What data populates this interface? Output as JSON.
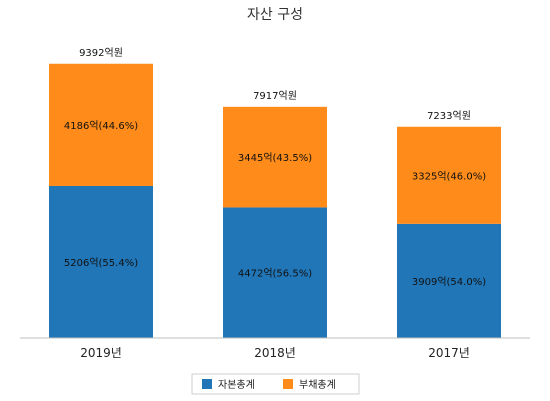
{
  "chart_data": {
    "type": "bar",
    "stacked": true,
    "title": "자산 구성",
    "categories": [
      "2019년",
      "2018년",
      "2017년"
    ],
    "series": [
      {
        "name": "자본총계",
        "color": "#2176b8",
        "values": [
          5206,
          4472,
          3909
        ],
        "labels": [
          "5206억(55.4%)",
          "4472억(56.5%)",
          "3909억(54.0%)"
        ]
      },
      {
        "name": "부채총계",
        "color": "#ff8c1a",
        "values": [
          4186,
          3445,
          3325
        ],
        "labels": [
          "4186억(44.6%)",
          "3445억(43.5%)",
          "3325억(46.0%)"
        ]
      }
    ],
    "totals": [
      9392,
      7917,
      7233
    ],
    "total_labels": [
      "9392억원",
      "7917억원",
      "7233억원"
    ],
    "ylim": [
      0,
      10000
    ],
    "grid": false,
    "legend": "bottom-center"
  }
}
